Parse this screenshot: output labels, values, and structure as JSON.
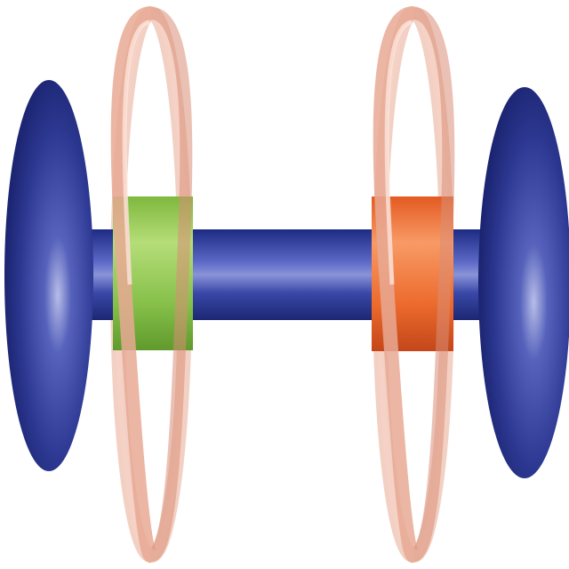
{
  "diagram": {
    "components": [
      {
        "id": "stopper-left",
        "kind": "stopper",
        "color": "#2b3890"
      },
      {
        "id": "axle",
        "kind": "axle",
        "color": "#2d3c99"
      },
      {
        "id": "station-green",
        "kind": "station",
        "color": "#8cc44c"
      },
      {
        "id": "station-orange",
        "kind": "station",
        "color": "#f06a2e"
      },
      {
        "id": "ring-left",
        "kind": "macrocycle",
        "color": "#f0b8a5"
      },
      {
        "id": "ring-right",
        "kind": "macrocycle",
        "color": "#f0b8a5"
      },
      {
        "id": "stopper-right",
        "kind": "stopper",
        "color": "#2b3890"
      }
    ]
  }
}
